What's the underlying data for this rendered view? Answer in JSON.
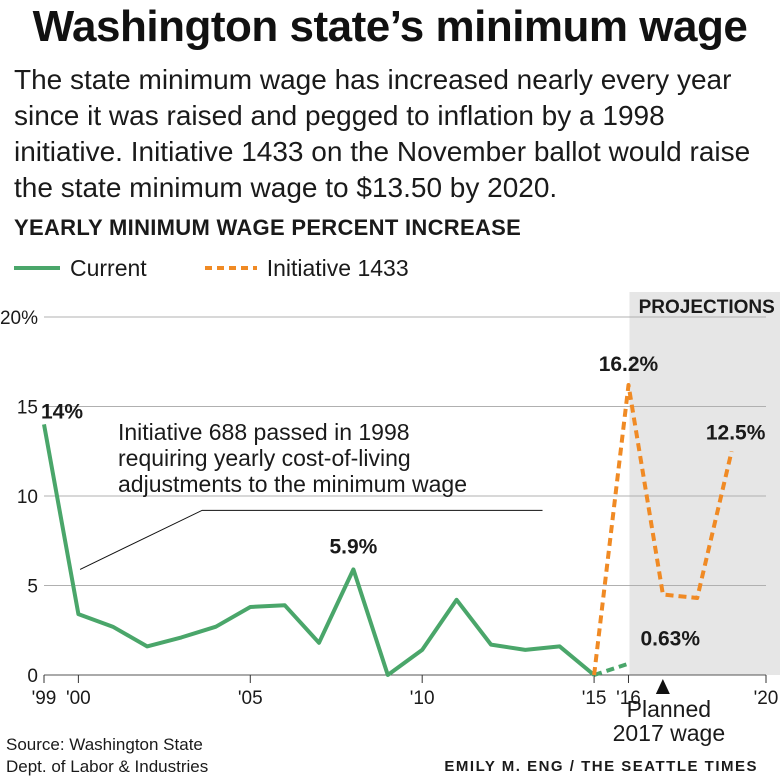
{
  "title": "Washington state’s minimum wage",
  "subtitle": "The state minimum wage has increased nearly every year since it was raised and pegged to inflation by a 1998 initiative. Initiative 1433 on the November ballot would raise the state minimum wage to $13.50 by 2020.",
  "section_label": "YEARLY MINIMUM WAGE PERCENT INCREASE",
  "legend": {
    "current": "Current",
    "initiative": "Initiative 1433"
  },
  "source": [
    "Source: Washington State",
    "Dept. of Labor & Industries"
  ],
  "credit": "EMILY M. ENG / THE SEATTLE TIMES",
  "colors": {
    "current": "#4aa66a",
    "initiative": "#f08a24",
    "projection_band": "#e6e6e6",
    "grid": "#b0b0b0"
  },
  "chart_data": {
    "type": "line",
    "xlim": [
      1999,
      2020
    ],
    "ylim": [
      0,
      20
    ],
    "yticks": [
      0,
      5,
      10,
      15,
      20
    ],
    "ytick_labels": [
      "0",
      "5",
      "10",
      "15",
      "20%"
    ],
    "xticks": [
      {
        "x": 1999,
        "label": "'99"
      },
      {
        "x": 2000,
        "label": "'00"
      },
      {
        "x": 2005,
        "label": "'05"
      },
      {
        "x": 2010,
        "label": "'10"
      },
      {
        "x": 2015,
        "label": "'15"
      },
      {
        "x": 2016,
        "label": "'16"
      },
      {
        "x": 2020,
        "label": "'20"
      }
    ],
    "projection_range": [
      2016,
      2020
    ],
    "projection_label": "PROJECTIONS",
    "series": [
      {
        "name": "Current",
        "style": "solid",
        "points": [
          [
            1999,
            14.0
          ],
          [
            2000,
            3.4
          ],
          [
            2001,
            2.7
          ],
          [
            2002,
            1.6
          ],
          [
            2003,
            2.1
          ],
          [
            2004,
            2.7
          ],
          [
            2005,
            3.8
          ],
          [
            2006,
            3.9
          ],
          [
            2007,
            1.8
          ],
          [
            2008,
            5.9
          ],
          [
            2009,
            0.0
          ],
          [
            2010,
            1.4
          ],
          [
            2011,
            4.2
          ],
          [
            2012,
            1.7
          ],
          [
            2013,
            1.4
          ],
          [
            2014,
            1.6
          ],
          [
            2015,
            0.0
          ]
        ]
      },
      {
        "name": "Current",
        "style": "dashed",
        "points": [
          [
            2015,
            0.0
          ],
          [
            2016,
            0.63
          ]
        ]
      },
      {
        "name": "Initiative 1433",
        "style": "dashed",
        "points": [
          [
            2015,
            0.0
          ],
          [
            2016,
            16.2
          ],
          [
            2017,
            4.5
          ],
          [
            2018,
            4.3
          ],
          [
            2019,
            12.5
          ]
        ]
      }
    ],
    "data_labels": [
      {
        "x": 1999,
        "y": 14.0,
        "text": "14%"
      },
      {
        "x": 2008,
        "y": 5.9,
        "text": "5.9%"
      },
      {
        "x": 2016,
        "y": 16.2,
        "text": "16.2%"
      },
      {
        "x": 2016,
        "y": 0.63,
        "text": "0.63%"
      },
      {
        "x": 2019,
        "y": 12.5,
        "text": "12.5%"
      }
    ],
    "annotations": [
      {
        "text_lines": [
          "Initiative 688 passed in 1998",
          "requiring yearly cost-of-living",
          "adjustments to the minimum wage"
        ]
      },
      {
        "text_lines": [
          "Planned",
          "2017 wage"
        ]
      }
    ]
  }
}
